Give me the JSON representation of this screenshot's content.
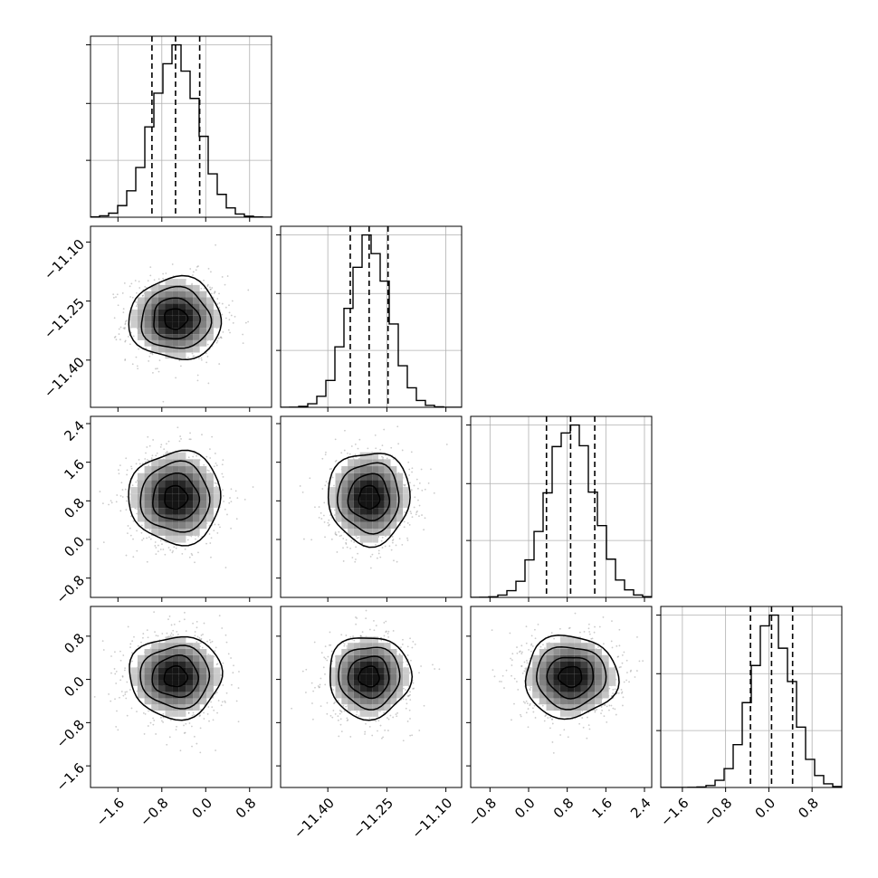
{
  "chart_data": {
    "type": "corner",
    "n_params": 4,
    "colors": {
      "line": "#000000",
      "scatter": "#8c8c8c",
      "grid": "#b0b0b0"
    },
    "params": [
      {
        "range": [
          -2.1,
          1.2
        ],
        "ticks": [
          "-1.6",
          "-0.8",
          "0.0",
          "0.8"
        ],
        "tick_values": [
          -1.6,
          -0.8,
          0.0,
          0.8
        ],
        "mean": -0.55,
        "sd": 0.42,
        "quantiles": [
          -0.98,
          -0.55,
          -0.11
        ]
      },
      {
        "range": [
          -11.52,
          -11.06
        ],
        "ticks": [
          "-11.40",
          "-11.25",
          "-11.10"
        ],
        "tick_values": [
          -11.4,
          -11.25,
          -11.1
        ],
        "mean": -11.295,
        "sd": 0.052,
        "quantiles": [
          -11.343,
          -11.295,
          -11.247
        ]
      },
      {
        "range": [
          -1.2,
          2.55
        ],
        "ticks": [
          "-0.8",
          "0.0",
          "0.8",
          "1.6",
          "2.4"
        ],
        "tick_values": [
          -0.8,
          0.0,
          0.8,
          1.6,
          2.4
        ],
        "mean": 0.87,
        "sd": 0.48,
        "quantiles": [
          0.37,
          0.87,
          1.37
        ]
      },
      {
        "range": [
          -2.0,
          1.35
        ],
        "ticks": [
          "-1.6",
          "-0.8",
          "0.0",
          "0.8"
        ],
        "tick_values": [
          -1.6,
          -0.8,
          0.0,
          0.8
        ],
        "mean": 0.05,
        "sd": 0.38,
        "quantiles": [
          -0.34,
          0.05,
          0.44
        ]
      }
    ],
    "histogram": {
      "y_ticks": [
        0.33,
        0.66,
        1.0
      ]
    },
    "legend": "none",
    "grid": true
  }
}
